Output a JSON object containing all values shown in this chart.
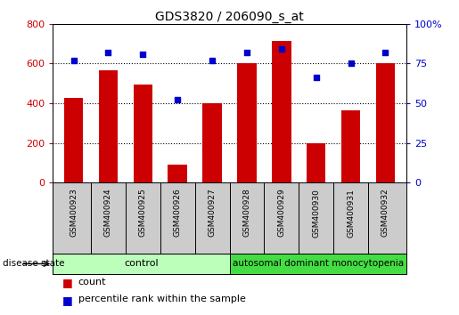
{
  "title": "GDS3820 / 206090_s_at",
  "samples": [
    "GSM400923",
    "GSM400924",
    "GSM400925",
    "GSM400926",
    "GSM400927",
    "GSM400928",
    "GSM400929",
    "GSM400930",
    "GSM400931",
    "GSM400932"
  ],
  "counts": [
    425,
    565,
    495,
    90,
    400,
    600,
    715,
    200,
    365,
    600
  ],
  "percentiles": [
    77,
    82,
    81,
    52,
    77,
    82,
    84,
    66,
    75,
    82
  ],
  "bar_color": "#cc0000",
  "dot_color": "#0000cc",
  "left_ylim": [
    0,
    800
  ],
  "left_yticks": [
    0,
    200,
    400,
    600,
    800
  ],
  "right_ylim": [
    0,
    100
  ],
  "right_yticks": [
    0,
    25,
    50,
    75,
    100
  ],
  "right_yticklabels": [
    "0",
    "25",
    "50",
    "75",
    "100%"
  ],
  "n_control": 5,
  "n_disease": 5,
  "control_label": "control",
  "disease_label": "autosomal dominant monocytopenia",
  "disease_state_label": "disease state",
  "control_color": "#bbffbb",
  "disease_color": "#44dd44",
  "tick_area_color": "#cccccc",
  "legend_count_label": "count",
  "legend_percentile_label": "percentile rank within the sample"
}
